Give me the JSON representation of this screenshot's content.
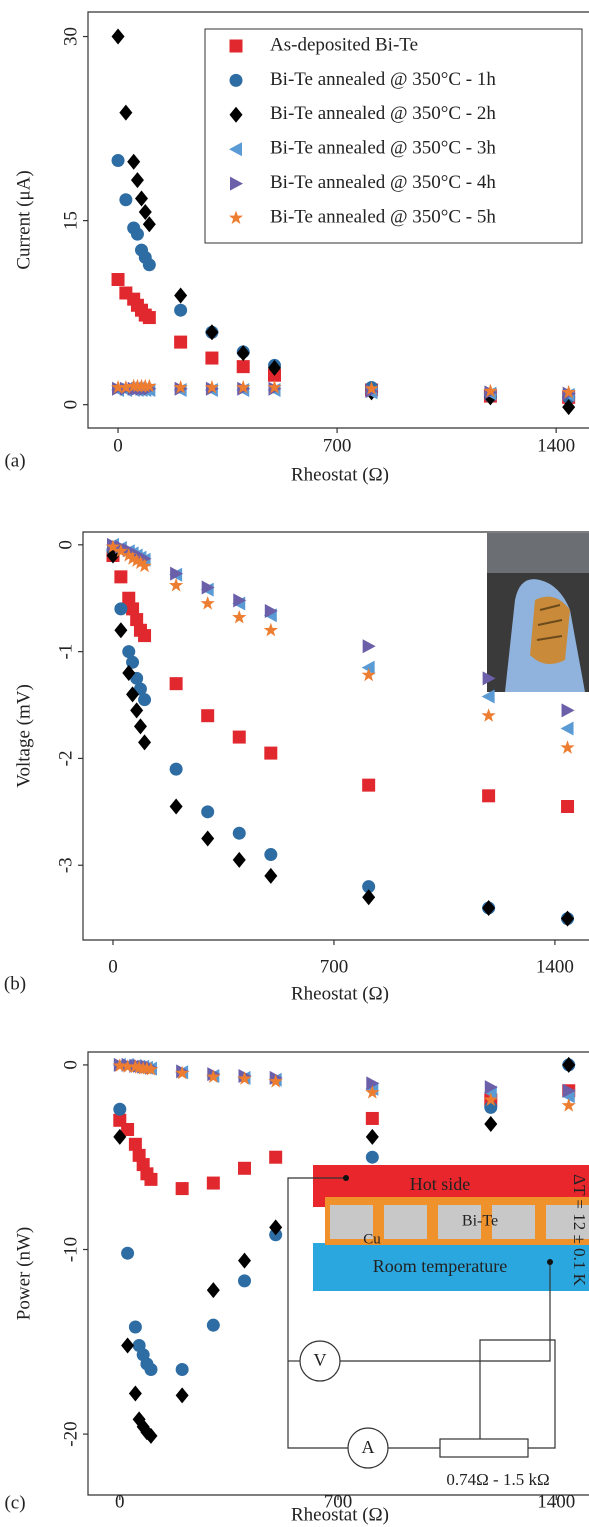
{
  "chart_data": [
    {
      "type": "scatter",
      "panel_label": "(a)",
      "xlabel": "Rheostat (Ω)",
      "ylabel": "Current (μA)",
      "x": [
        0,
        25,
        50,
        62,
        75,
        87,
        100,
        200,
        300,
        400,
        500,
        810,
        1190,
        1440
      ],
      "xlim": [
        -96,
        1505
      ],
      "xticks": [
        0,
        700,
        1400
      ],
      "ylim": [
        -1.9,
        32
      ],
      "yticks": [
        0,
        15,
        30
      ],
      "legend": true,
      "series": [
        {
          "name": "As-deposited Bi-Te",
          "color": "#e0282e",
          "marker": "square",
          "values": [
            10.2,
            9.1,
            8.6,
            8.1,
            7.7,
            7.3,
            7.1,
            5.1,
            3.8,
            3.1,
            2.4,
            1.2,
            0.7,
            0.6
          ]
        },
        {
          "name": "Bi-Te annealed @ 350°C - 1h",
          "color": "#2e6ca4",
          "marker": "circle",
          "values": [
            19.9,
            16.7,
            14.4,
            13.9,
            12.6,
            12.0,
            11.4,
            7.7,
            5.9,
            4.3,
            3.2,
            1.4,
            0.7,
            0.6
          ]
        },
        {
          "name": "Bi-Te annealed @ 350°C - 2h",
          "color": "#000000",
          "marker": "diamond",
          "values": [
            30.0,
            23.8,
            19.8,
            18.3,
            16.8,
            15.7,
            14.7,
            8.9,
            5.9,
            4.2,
            3.0,
            1.0,
            0.6,
            -0.2
          ]
        },
        {
          "name": "Bi-Te annealed @ 350°C - 3h",
          "color": "#5b9bd5",
          "marker": "triangle-left",
          "values": [
            1.2,
            1.2,
            1.2,
            1.2,
            1.2,
            1.2,
            1.2,
            1.2,
            1.2,
            1.2,
            1.2,
            1.0,
            0.9,
            0.8
          ]
        },
        {
          "name": "Bi-Te annealed @ 350°C - 4h",
          "color": "#6a5fa8",
          "marker": "triangle-right",
          "values": [
            1.3,
            1.3,
            1.3,
            1.3,
            1.3,
            1.3,
            1.3,
            1.3,
            1.3,
            1.3,
            1.3,
            1.1,
            1.0,
            0.9
          ]
        },
        {
          "name": "Bi-Te annealed @ 350°C - 5h",
          "color": "#ed7d31",
          "marker": "star",
          "values": [
            1.4,
            1.4,
            1.5,
            1.5,
            1.5,
            1.5,
            1.5,
            1.4,
            1.4,
            1.4,
            1.4,
            1.3,
            1.1,
            1.0
          ]
        }
      ]
    },
    {
      "type": "scatter",
      "panel_label": "(b)",
      "xlabel": "Rheostat (Ω)",
      "ylabel": "Voltage (mV)",
      "x": [
        0,
        25,
        50,
        62,
        75,
        87,
        100,
        200,
        300,
        400,
        500,
        810,
        1190,
        1440
      ],
      "xlim": [
        -95,
        1508
      ],
      "xticks": [
        0,
        700,
        1400
      ],
      "ylim": [
        -3.7,
        0.12
      ],
      "yticks": [
        0,
        -1,
        -2,
        -3
      ],
      "legend": false,
      "series": [
        {
          "color": "#e0282e",
          "marker": "square",
          "values": [
            -0.1,
            -0.3,
            -0.5,
            -0.6,
            -0.7,
            -0.8,
            -0.85,
            -1.3,
            -1.6,
            -1.8,
            -1.95,
            -2.25,
            -2.35,
            -2.45
          ]
        },
        {
          "color": "#2e6ca4",
          "marker": "circle",
          "values": [
            -0.05,
            -0.6,
            -1.0,
            -1.1,
            -1.25,
            -1.35,
            -1.45,
            -2.1,
            -2.5,
            -2.7,
            -2.9,
            -3.2,
            -3.4,
            -3.5
          ]
        },
        {
          "color": "#000000",
          "marker": "diamond",
          "values": [
            -0.1,
            -0.8,
            -1.2,
            -1.4,
            -1.55,
            -1.7,
            -1.85,
            -2.45,
            -2.75,
            -2.95,
            -3.1,
            -3.3,
            -3.4,
            -3.5
          ]
        },
        {
          "color": "#5b9bd5",
          "marker": "triangle-left",
          "values": [
            0,
            -0.03,
            -0.06,
            -0.08,
            -0.1,
            -0.12,
            -0.14,
            -0.28,
            -0.42,
            -0.55,
            -0.66,
            -1.15,
            -1.42,
            -1.72
          ]
        },
        {
          "color": "#6a5fa8",
          "marker": "triangle-right",
          "values": [
            0,
            -0.02,
            -0.05,
            -0.07,
            -0.09,
            -0.11,
            -0.13,
            -0.27,
            -0.4,
            -0.52,
            -0.62,
            -0.95,
            -1.25,
            -1.55
          ]
        },
        {
          "color": "#ed7d31",
          "marker": "star",
          "values": [
            -0.02,
            -0.06,
            -0.1,
            -0.13,
            -0.15,
            -0.17,
            -0.2,
            -0.38,
            -0.55,
            -0.68,
            -0.8,
            -1.22,
            -1.6,
            -1.9
          ]
        }
      ]
    },
    {
      "type": "scatter",
      "panel_label": "(c)",
      "xlabel": "Rheostat (Ω)",
      "ylabel": "Power (nW)",
      "x": [
        0,
        25,
        50,
        62,
        75,
        87,
        100,
        200,
        300,
        400,
        500,
        810,
        1190,
        1440
      ],
      "xlim": [
        -102,
        1505
      ],
      "xticks": [
        0,
        700,
        1400
      ],
      "ylim": [
        -23.3,
        0.7
      ],
      "yticks": [
        0,
        -10,
        -20
      ],
      "legend": false,
      "annotations": [
        "Hot side",
        "Bi-Te",
        "Cu",
        "Room temperature",
        "V",
        "A",
        "0.74Ω - 1.5 kΩ",
        "ΔT = 12 ± 0.1 K"
      ],
      "series": [
        {
          "color": "#e0282e",
          "marker": "square",
          "values": [
            -3.0,
            -3.5,
            -4.3,
            -4.9,
            -5.4,
            -5.9,
            -6.2,
            -6.7,
            -6.4,
            -5.6,
            -5.0,
            -2.9,
            -1.9,
            -1.4
          ]
        },
        {
          "color": "#2e6ca4",
          "marker": "circle",
          "values": [
            -2.4,
            -10.2,
            -14.2,
            -15.2,
            -15.7,
            -16.2,
            -16.5,
            -16.5,
            -14.1,
            -11.7,
            -9.2,
            -5.0,
            -2.3,
            0
          ]
        },
        {
          "color": "#000000",
          "marker": "diamond",
          "values": [
            -3.9,
            -15.2,
            -17.8,
            -19.2,
            -19.6,
            -19.9,
            -20.1,
            -17.9,
            -12.2,
            -10.6,
            -8.8,
            -3.9,
            -3.2,
            0
          ]
        },
        {
          "color": "#5b9bd5",
          "marker": "triangle-left",
          "values": [
            0,
            0,
            -0.05,
            -0.1,
            -0.1,
            -0.15,
            -0.2,
            -0.4,
            -0.6,
            -0.7,
            -0.8,
            -1.3,
            -1.5,
            -1.7
          ]
        },
        {
          "color": "#6a5fa8",
          "marker": "triangle-right",
          "values": [
            0,
            0,
            -0.05,
            -0.05,
            -0.1,
            -0.1,
            -0.15,
            -0.35,
            -0.5,
            -0.6,
            -0.7,
            -1.0,
            -1.2,
            -1.4
          ]
        },
        {
          "color": "#ed7d31",
          "marker": "star",
          "values": [
            -0.05,
            -0.1,
            -0.1,
            -0.15,
            -0.2,
            -0.2,
            -0.25,
            -0.45,
            -0.65,
            -0.75,
            -0.9,
            -1.5,
            -1.9,
            -2.2
          ]
        }
      ]
    }
  ]
}
